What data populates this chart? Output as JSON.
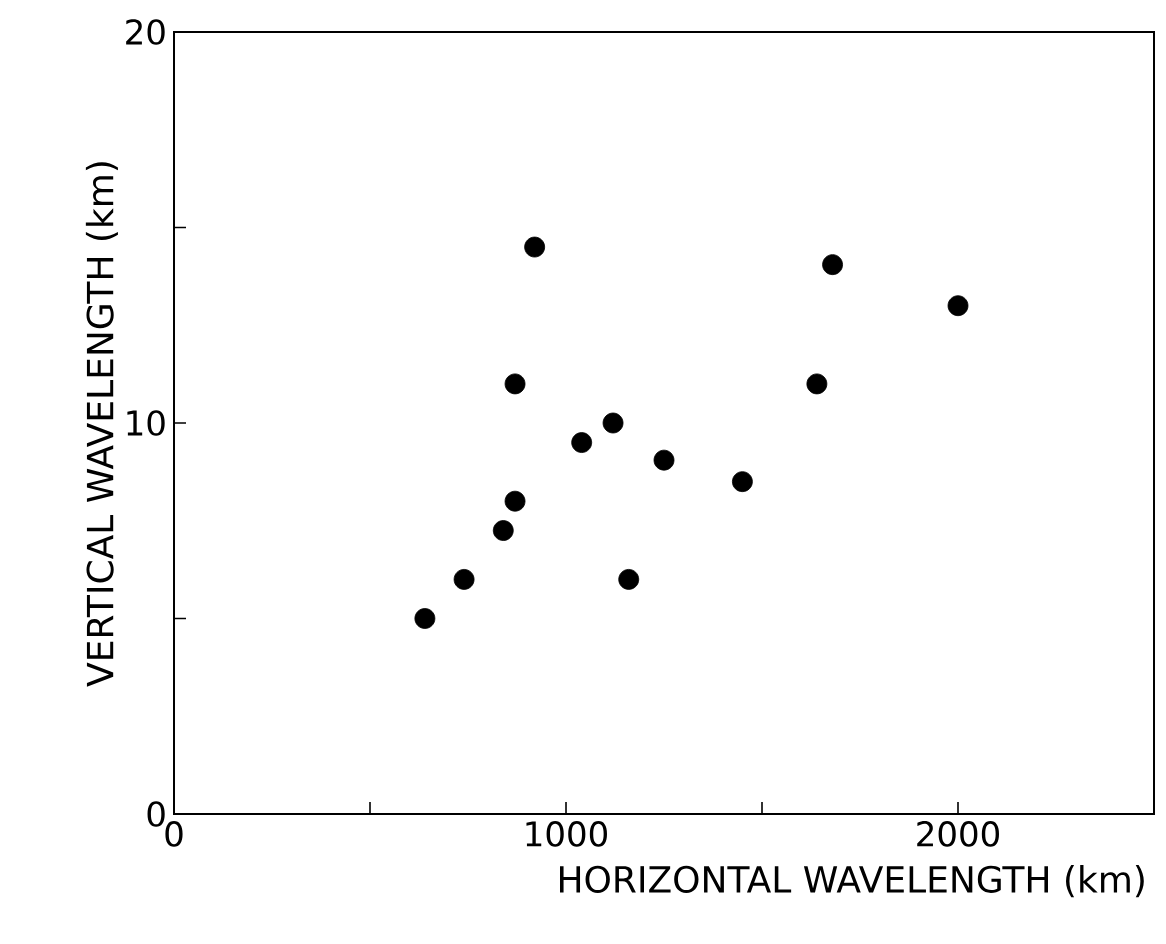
{
  "chart_data": {
    "type": "scatter",
    "xlabel": "HORIZONTAL WAVELENGTH (km)",
    "ylabel": "VERTICAL WAVELENGTH (km)",
    "x": [
      640,
      740,
      840,
      870,
      870,
      920,
      1040,
      1120,
      1160,
      1250,
      1450,
      1640,
      1680,
      2000
    ],
    "values": [
      5.0,
      6.0,
      7.25,
      8.0,
      11.0,
      14.5,
      9.5,
      10.0,
      6.0,
      9.05,
      8.5,
      11.0,
      14.05,
      13.0
    ],
    "color": "#000000",
    "marker": "circle",
    "xlim": [
      0,
      2500
    ],
    "xticks": [
      0,
      {
        "value": 500,
        "label": null
      },
      1000,
      {
        "value": 1500,
        "label": null
      },
      2000,
      {
        "value": 2500,
        "label": null
      }
    ],
    "ylim": [
      0,
      20
    ],
    "yticks": [
      0,
      {
        "value": 5,
        "label": null
      },
      10,
      {
        "value": 15,
        "label": null
      },
      20
    ]
  }
}
